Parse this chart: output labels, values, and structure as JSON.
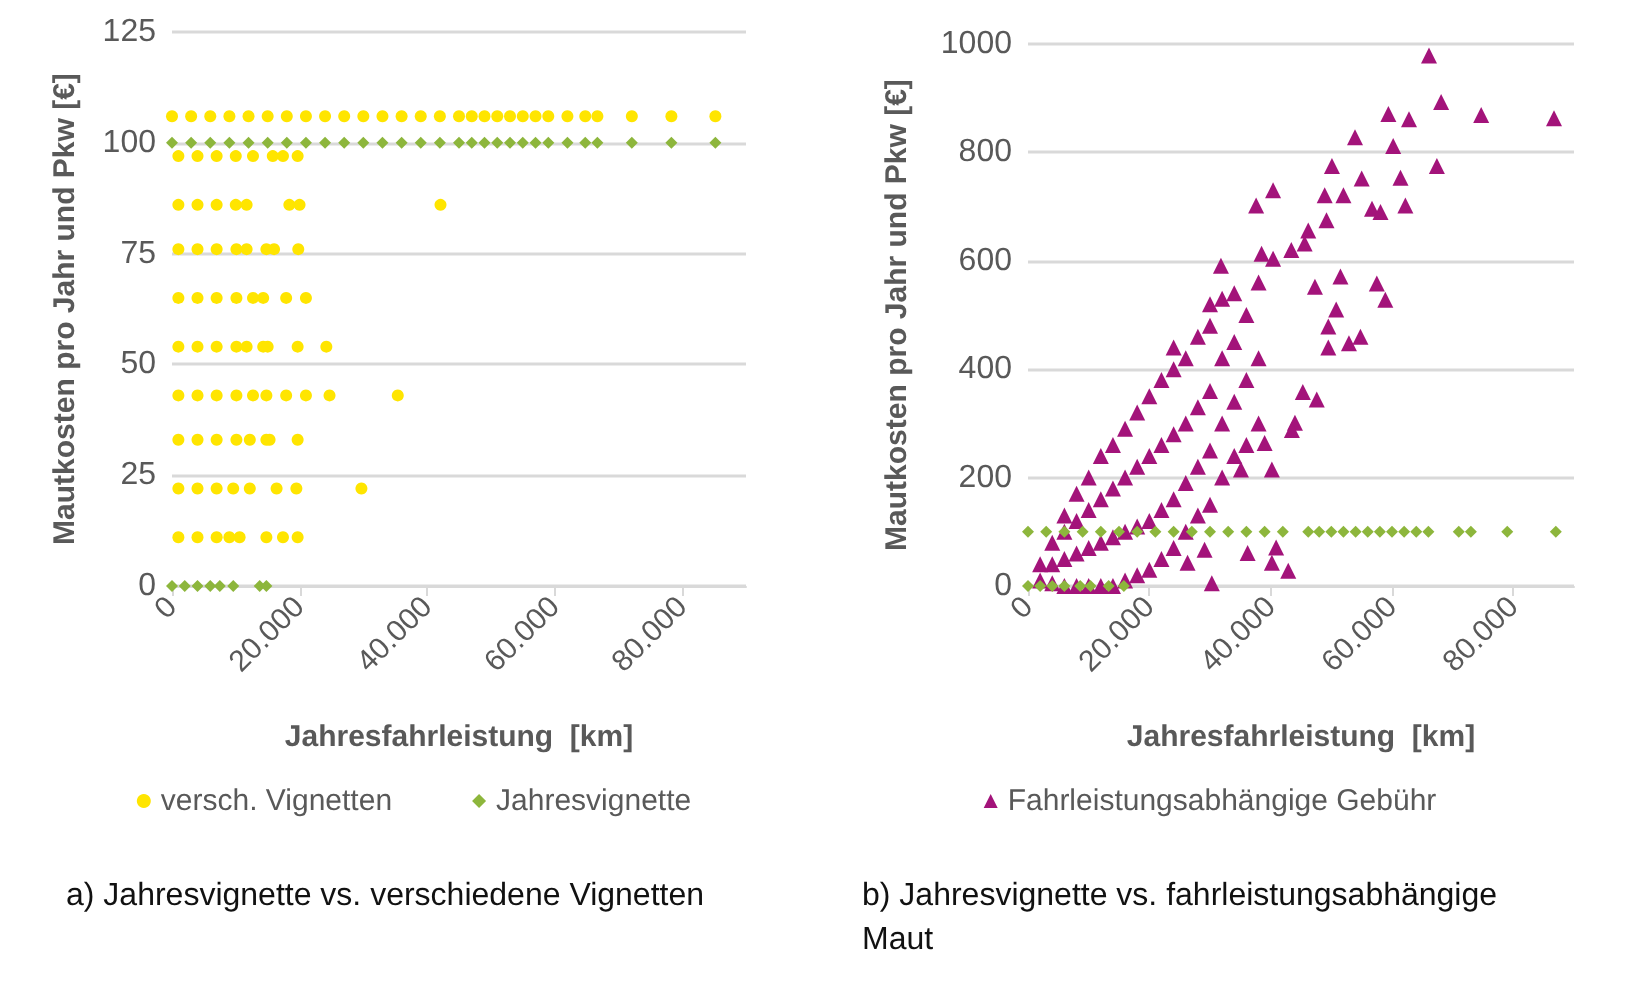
{
  "chart_data": [
    {
      "type": "scatter",
      "title": "a) Jahresvignette vs. verschiedene Vignetten",
      "xlabel": "Jahresfahrleistung  [km]",
      "ylabel": "Mautkosten pro Jahr und Pkw [€]",
      "xlim": [
        0,
        90000
      ],
      "xticks": [
        0,
        {
          "value": 20000,
          "label": "20.000"
        },
        {
          "value": 40000,
          "label": "40.000"
        },
        {
          "value": 60000,
          "label": "60.000"
        },
        {
          "value": 80000,
          "label": "80.000"
        }
      ],
      "ylim": [
        0,
        125
      ],
      "yticks": [
        0,
        25,
        50,
        75,
        100,
        125
      ],
      "grid": "y",
      "legend": "bottom",
      "series": [
        {
          "name": "versch. Vignetten",
          "color": "#ffe500",
          "marker": "circle",
          "x": [
            0,
            3000,
            6000,
            9000,
            12000,
            15000,
            18000,
            21000,
            24000,
            27000,
            30000,
            33000,
            36000,
            39000,
            42000,
            45000,
            47000,
            49000,
            51000,
            53000,
            55000,
            57000,
            59000,
            62000,
            64800,
            66700,
            72100,
            78300,
            85200,
            1000,
            4000,
            7000,
            10000,
            12700,
            15800,
            17400,
            19700,
            1000,
            4000,
            7000,
            10000,
            11700,
            18400,
            20000,
            42100,
            1000,
            4000,
            7000,
            10100,
            11700,
            14800,
            16000,
            19800,
            1000,
            4000,
            7000,
            10100,
            12700,
            14300,
            17900,
            21000,
            1000,
            4000,
            7000,
            10100,
            11700,
            14300,
            15000,
            19700,
            24200,
            1000,
            4000,
            7000,
            10100,
            12700,
            14800,
            17900,
            21000,
            24700,
            35400,
            1000,
            4000,
            7000,
            10100,
            12200,
            14800,
            15300,
            19700,
            1000,
            4000,
            7000,
            9600,
            12200,
            16400,
            19500,
            29700,
            1000,
            4000,
            7000,
            9000,
            10600,
            14800,
            17400,
            19700
          ],
          "values": [
            106,
            106,
            106,
            106,
            106,
            106,
            106,
            106,
            106,
            106,
            106,
            106,
            106,
            106,
            106,
            106,
            106,
            106,
            106,
            106,
            106,
            106,
            106,
            106,
            106,
            106,
            106,
            106,
            106,
            97,
            97,
            97,
            97,
            97,
            97,
            97,
            97,
            86,
            86,
            86,
            86,
            86,
            86,
            86,
            86,
            76,
            76,
            76,
            76,
            76,
            76,
            76,
            76,
            65,
            65,
            65,
            65,
            65,
            65,
            65,
            65,
            54,
            54,
            54,
            54,
            54,
            54,
            54,
            54,
            54,
            43,
            43,
            43,
            43,
            43,
            43,
            43,
            43,
            43,
            43,
            33,
            33,
            33,
            33,
            33,
            33,
            33,
            33,
            22,
            22,
            22,
            22,
            22,
            22,
            22,
            22,
            11,
            11,
            11,
            11,
            11,
            11,
            11,
            11
          ]
        },
        {
          "name": "Jahresvignette",
          "color": "#8db63c",
          "marker": "diamond",
          "x": [
            0,
            3000,
            6000,
            9000,
            12000,
            15000,
            18000,
            21000,
            24000,
            27000,
            30000,
            33000,
            36000,
            39000,
            42000,
            45000,
            47000,
            49000,
            51000,
            53000,
            55000,
            57000,
            59000,
            62000,
            64800,
            66700,
            72100,
            78300,
            85200,
            0,
            2000,
            4000,
            6000,
            7500,
            9600,
            13750,
            14800
          ],
          "values": [
            100,
            100,
            100,
            100,
            100,
            100,
            100,
            100,
            100,
            100,
            100,
            100,
            100,
            100,
            100,
            100,
            100,
            100,
            100,
            100,
            100,
            100,
            100,
            100,
            100,
            100,
            100,
            100,
            100,
            0,
            0,
            0,
            0,
            0,
            0,
            0,
            0
          ]
        }
      ]
    },
    {
      "type": "scatter",
      "title": "b) Jahresvignette vs. fahrleistungsabhängige Maut",
      "xlabel": "Jahresfahrleistung  [km]",
      "ylabel": "Mautkosten pro Jahr und Pkw [€]",
      "xlim": [
        0,
        90000
      ],
      "xticks": [
        0,
        {
          "value": 20000,
          "label": "20.000"
        },
        {
          "value": 40000,
          "label": "40.000"
        },
        {
          "value": 60000,
          "label": "60.000"
        },
        {
          "value": 80000,
          "label": "80.000"
        }
      ],
      "ylim": [
        0,
        1000
      ],
      "yticks": [
        0,
        200,
        400,
        600,
        800,
        1000
      ],
      "grid": "y",
      "legend": "bottom",
      "series": [
        {
          "name": "Fahrleistungsabhängige Gebühr",
          "color": "#a3137a",
          "marker": "triangle",
          "x": [
            2000,
            2000,
            4000,
            4000,
            4000,
            6000,
            6000,
            6000,
            6000,
            8000,
            8000,
            8000,
            8000,
            10000,
            10000,
            10000,
            10000,
            12000,
            12000,
            12000,
            12000,
            14000,
            14000,
            14000,
            14000,
            16000,
            16000,
            16000,
            16000,
            18000,
            18000,
            18000,
            18000,
            20000,
            20000,
            20000,
            20000,
            22000,
            22000,
            22000,
            22000,
            24000,
            24000,
            24000,
            24000,
            24000,
            26000,
            26000,
            26000,
            26000,
            28000,
            28000,
            28000,
            28000,
            30000,
            30000,
            30000,
            30000,
            30000,
            32000,
            32000,
            32000,
            32000,
            34000,
            34000,
            34000,
            34000,
            36000,
            36000,
            36000,
            38000,
            38000,
            38000,
            66100,
            68100,
            59400,
            62800,
            74700,
            86700,
            67400,
            60200,
            53900,
            61400,
            55000,
            50100,
            48900,
            52000,
            56700,
            58100,
            62200,
            37600,
            40400,
            31800,
            38500,
            40400,
            49200,
            46200,
            43400,
            45600,
            47300,
            51500,
            57500,
            58900,
            50800,
            49500,
            54800,
            52900,
            49500,
            47600,
            45300,
            44000,
            43500,
            40200,
            39000,
            35100,
            36200,
            40900,
            42900,
            40200,
            30300,
            29100,
            26300
          ],
          "values": [
            10,
            40,
            5,
            40,
            80,
            0,
            50,
            100,
            130,
            0,
            60,
            120,
            170,
            0,
            70,
            140,
            200,
            0,
            80,
            160,
            240,
            0,
            90,
            180,
            260,
            10,
            100,
            200,
            290,
            20,
            110,
            220,
            320,
            30,
            120,
            240,
            350,
            50,
            140,
            260,
            380,
            70,
            160,
            280,
            400,
            440,
            100,
            190,
            300,
            420,
            130,
            220,
            330,
            460,
            150,
            250,
            360,
            480,
            520,
            200,
            300,
            420,
            530,
            240,
            340,
            450,
            540,
            260,
            380,
            500,
            300,
            420,
            560,
            979,
            893,
            871,
            861,
            869,
            863,
            775,
            812,
            828,
            753,
            752,
            775,
            721,
            721,
            696,
            690,
            702,
            702,
            730,
            591,
            613,
            604,
            675,
            656,
            620,
            632,
            552,
            571,
            558,
            528,
            510,
            479,
            460,
            448,
            440,
            344,
            358,
            301,
            288,
            215,
            264,
            215,
            61,
            71,
            28,
            43,
            5,
            67,
            43
          ]
        },
        {
          "color": "#8db63c",
          "marker": "diamond",
          "x": [
            0,
            3000,
            6000,
            9000,
            12000,
            15000,
            18000,
            21000,
            24000,
            27000,
            30000,
            33000,
            36000,
            39000,
            42000,
            46200,
            48000,
            50000,
            52000,
            54000,
            56000,
            58000,
            60000,
            62000,
            64000,
            66000,
            71000,
            73000,
            79000,
            87000,
            0,
            2000,
            4000,
            6000,
            8600,
            10300,
            13300,
            15800
          ],
          "values": [
            100,
            100,
            100,
            100,
            100,
            100,
            100,
            100,
            100,
            100,
            100,
            100,
            100,
            100,
            100,
            100,
            100,
            100,
            100,
            100,
            100,
            100,
            100,
            100,
            100,
            100,
            100,
            100,
            100,
            100,
            0,
            0,
            0,
            0,
            0,
            0,
            0,
            0
          ]
        }
      ]
    }
  ]
}
